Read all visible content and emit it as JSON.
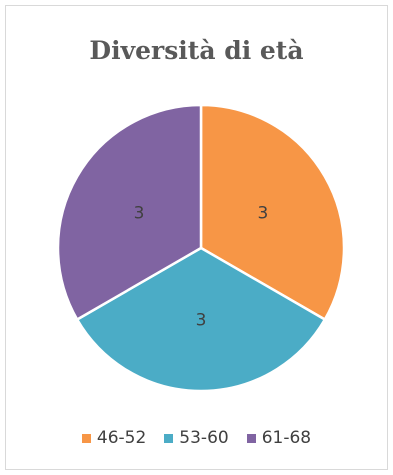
{
  "chart_data": {
    "type": "pie",
    "title": "Diversità di età",
    "categories": [
      "46-52",
      "53-60",
      "61-68"
    ],
    "values": [
      3,
      3,
      3
    ],
    "colors": [
      "#f79646",
      "#4bacc6",
      "#8064a2"
    ],
    "data_labels": [
      "3",
      "3",
      "3"
    ],
    "legend_position": "bottom"
  }
}
